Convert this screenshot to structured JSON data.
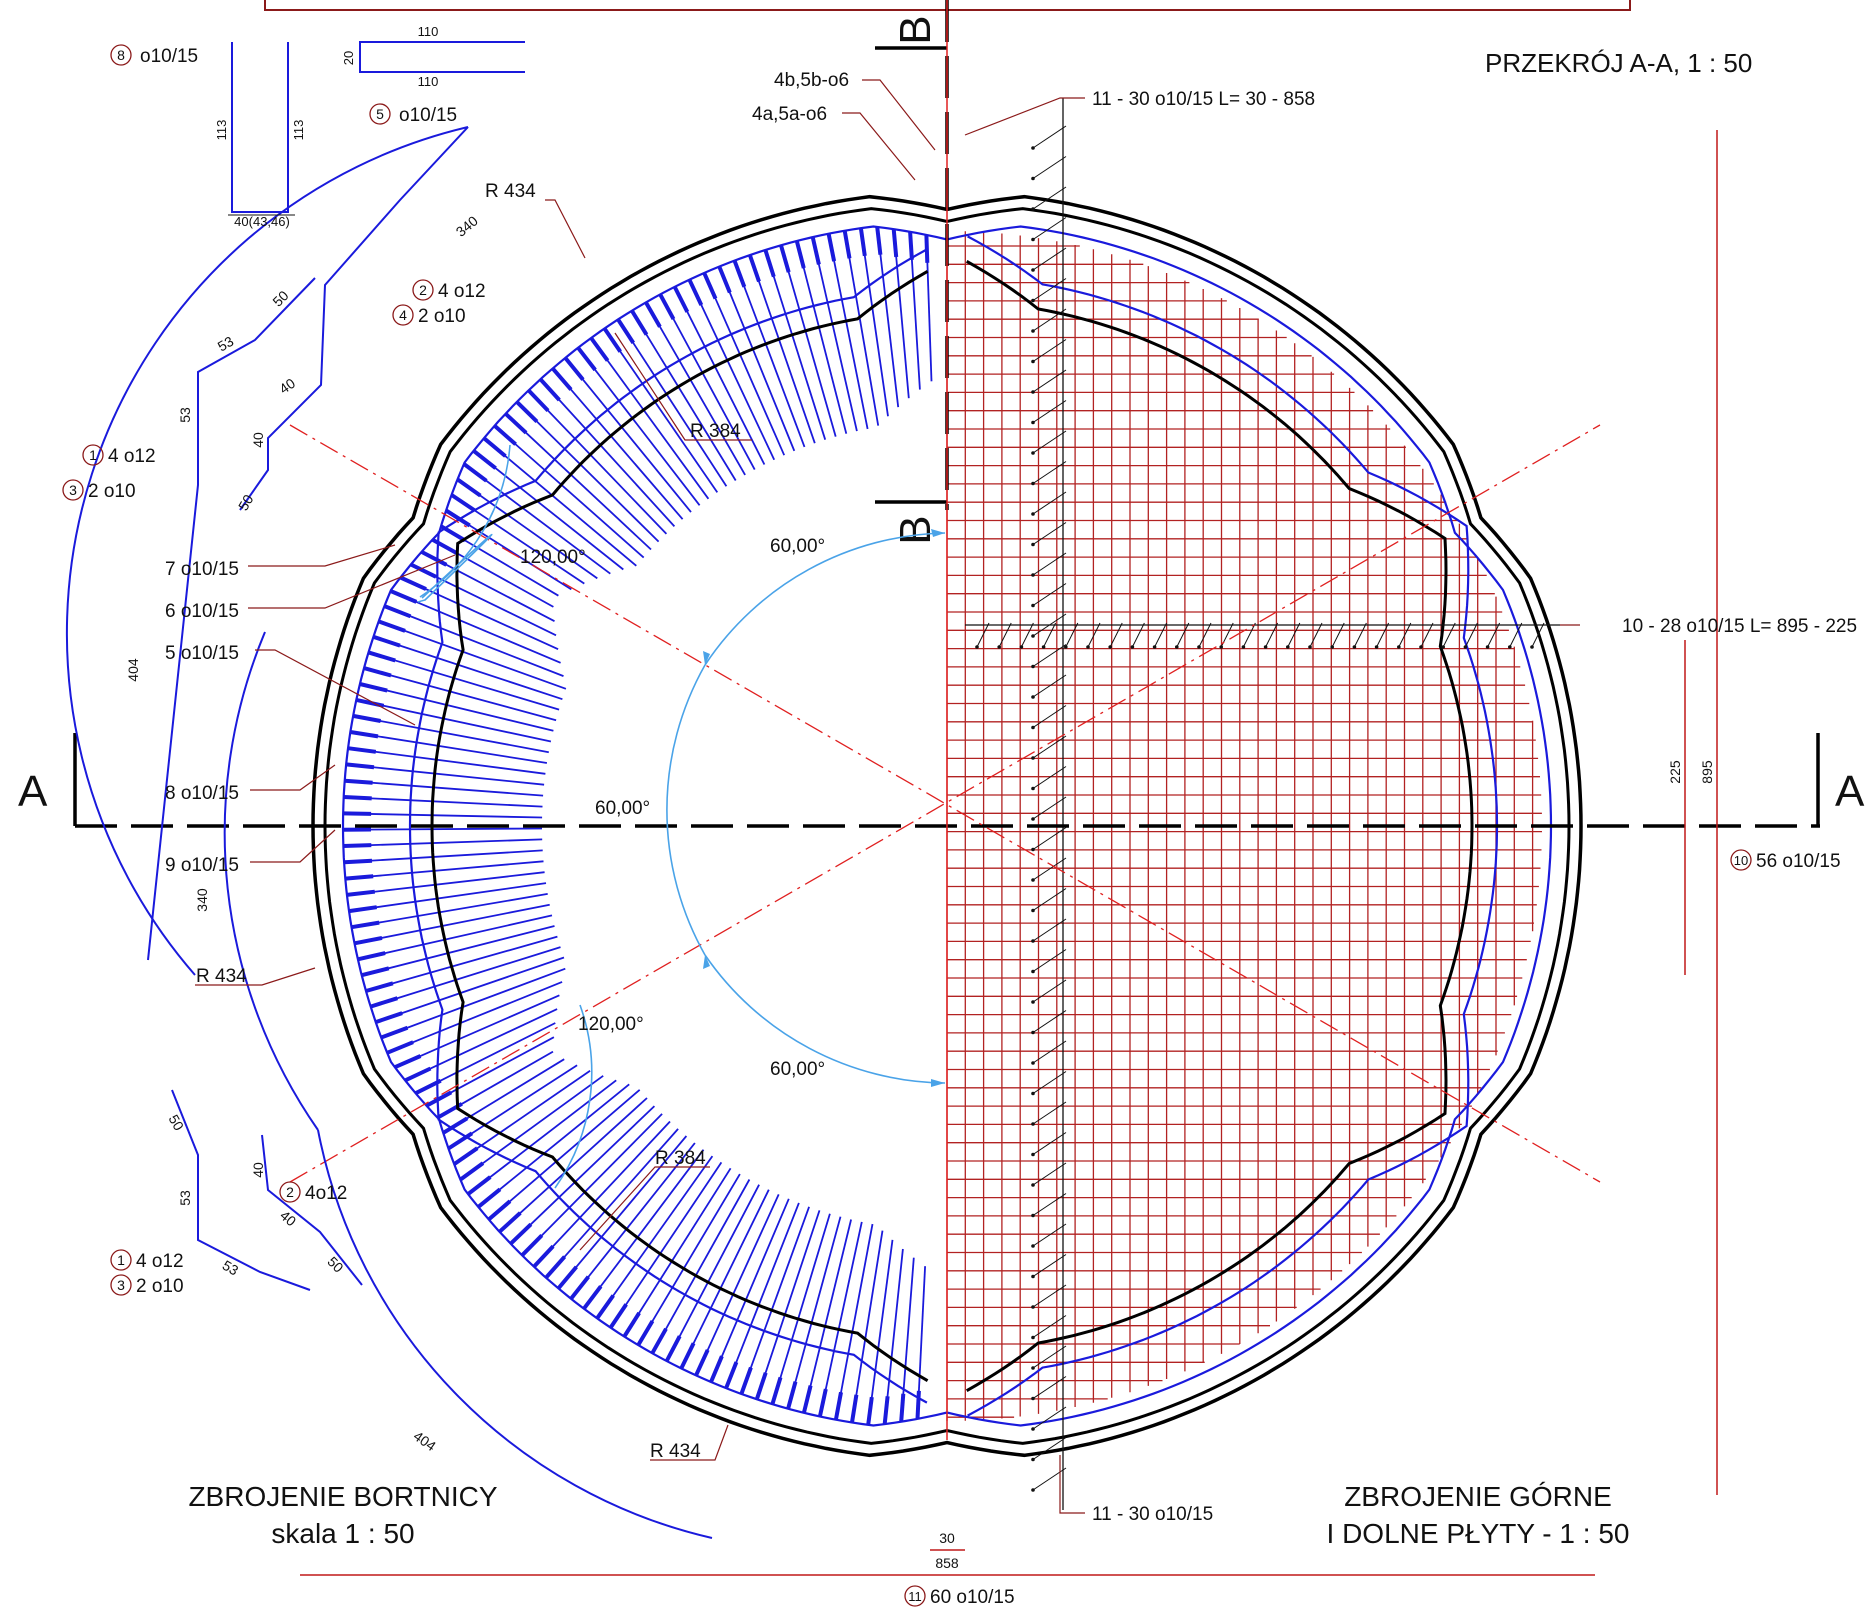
{
  "section_marks": {
    "a": "A",
    "b": "B"
  },
  "titles": {
    "section": "PRZEKRÓJ  A-A, 1 : 50",
    "left_line1": "ZBROJENIE BORTNICY",
    "left_line2": "skala  1 : 50",
    "right_line1": "ZBROJENIE GÓRNE",
    "right_line2": "I DOLNE PŁYTY - 1 : 50"
  },
  "bar_schedule": {
    "b8": {
      "num": "8",
      "text": "o10/15",
      "dim_height": "113",
      "dim_bottom": "40(43,46)"
    },
    "b5": {
      "num": "5",
      "text": "o10/15",
      "dim_top": "110",
      "dim_inner": "110",
      "dim_side": "20"
    }
  },
  "callouts": {
    "c_4b": "4b,5b-o6",
    "c_4a": "4a,5a-o6",
    "c_11_top": "11 - 30 o10/15 L= 30 - 858",
    "c_10": "10 - 28 o10/15 L= 895 - 225",
    "c_11_bottom": "11 - 30 o10/15",
    "c_7": "7 o10/15",
    "c_6": "6 o10/15",
    "c_5": "5 o10/15",
    "c_8": "8 o10/15",
    "c_9": "9 o10/15",
    "r434_top": "R 434",
    "r384_top": "R 384",
    "r434_left": "R 434",
    "r384_bottom": "R 384",
    "r434_bottom": "R 434"
  },
  "angles": {
    "a1": "120,00°",
    "a2": "60,00°",
    "a3": "60,00°",
    "a4": "120,00°",
    "a5": "60,00°"
  },
  "bar_labels": {
    "top_b1_num": "1",
    "top_b1_text": "4 o12",
    "top_b3_num": "3",
    "top_b3_text": "2 o10",
    "top_b2_num": "2",
    "top_b2_text": "4 o12",
    "top_b4_num": "4",
    "top_b4_text": "2 o10",
    "bot_b2_num": "2",
    "bot_b2_text": "4o12",
    "bot_b1_num": "1",
    "bot_b1_text": "4 o12",
    "bot_b3_num": "3",
    "bot_b3_text": "2 o10",
    "b10_num": "10",
    "b10_text": "56 o10/15",
    "b11_num": "11",
    "b11_text": "60 o10/15"
  },
  "dims": {
    "d340_top": "340",
    "d50_a": "50",
    "d53_a": "53",
    "d53_b": "53",
    "d40_a": "40",
    "d40_b": "40",
    "d50_b": "50",
    "d404_top": "404",
    "d340_bot": "340",
    "d50_c": "50",
    "d53_c": "53",
    "d40_c": "40",
    "d40_d": "40",
    "d53_d": "53",
    "d50_d": "50",
    "d404_bot": "404",
    "d225": "225",
    "d895": "895",
    "d30": "30",
    "d858": "858"
  },
  "colors": {
    "rebar": "#1a1adc",
    "mesh": "#b22222",
    "outline": "#000000",
    "dim_arc": "#4aa3e8",
    "axis": "#e02020"
  }
}
